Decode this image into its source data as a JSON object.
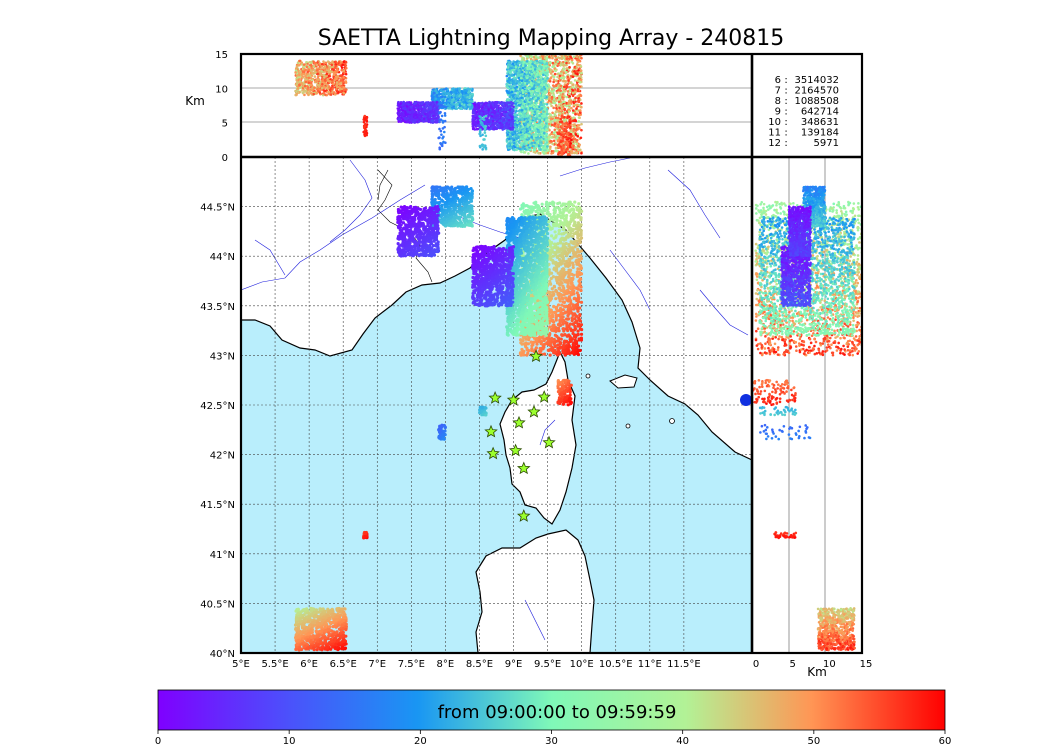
{
  "chart_data": {
    "type": "scatter",
    "title": "SAETTA Lightning Mapping Array - 240815",
    "time_range_label": "from 09:00:00 to 09:59:59",
    "map": {
      "lon_range": [
        5,
        12.5
      ],
      "lat_range": [
        40,
        45
      ],
      "lon_ticks": [
        "5°E",
        "5.5°E",
        "6°E",
        "6.5°E",
        "7°E",
        "7.5°E",
        "8°E",
        "8.5°E",
        "9°E",
        "9.5°E",
        "10°E",
        "10.5°E",
        "11°E",
        "11.5°E"
      ],
      "lat_ticks": [
        "40°N",
        "40.5°N",
        "41°N",
        "41.5°N",
        "42°N",
        "42.5°N",
        "43°N",
        "43.5°N",
        "44°N",
        "44.5°N"
      ],
      "grid": true
    },
    "top_panel": {
      "ylabel": "Km",
      "y_range": [
        0,
        15
      ],
      "y_ticks": [
        "0",
        "5",
        "10",
        "15"
      ]
    },
    "side_panel": {
      "xlabel": "Km",
      "x_range": [
        0,
        15
      ],
      "x_ticks": [
        "0",
        "5",
        "10",
        "15"
      ]
    },
    "counts": [
      {
        "label": "6",
        "value": "3514032",
        "color": "#000000"
      },
      {
        "label": "7",
        "value": "2164570",
        "color": "#ff0000"
      },
      {
        "label": "8",
        "value": "1088508",
        "color": "#000000"
      },
      {
        "label": "9",
        "value": "642714",
        "color": "#000000"
      },
      {
        "label": "10",
        "value": "348631",
        "color": "#000000"
      },
      {
        "label": "11",
        "value": "139184",
        "color": "#000000"
      },
      {
        "label": "12",
        "value": "5971",
        "color": "#000000"
      }
    ],
    "colorbar": {
      "range": [
        0,
        60
      ],
      "ticks": [
        "0",
        "10",
        "20",
        "30",
        "40",
        "50",
        "60"
      ],
      "colormap": "rainbow"
    },
    "stations": [
      {
        "lon": 9.33,
        "lat": 42.99
      },
      {
        "lon": 8.73,
        "lat": 42.57
      },
      {
        "lon": 9.0,
        "lat": 42.55
      },
      {
        "lon": 9.45,
        "lat": 42.58
      },
      {
        "lon": 9.3,
        "lat": 42.43
      },
      {
        "lon": 9.08,
        "lat": 42.32
      },
      {
        "lon": 8.67,
        "lat": 42.23
      },
      {
        "lon": 9.52,
        "lat": 42.12
      },
      {
        "lon": 8.7,
        "lat": 42.01
      },
      {
        "lon": 9.03,
        "lat": 42.04
      },
      {
        "lon": 9.15,
        "lat": 41.86
      },
      {
        "lon": 9.15,
        "lat": 41.38
      }
    ],
    "clusters": [
      {
        "lon": [
          9.1,
          10.0
        ],
        "lat": [
          43.0,
          44.55
        ],
        "alt": [
          0.5,
          15
        ],
        "time": [
          30,
          60
        ]
      },
      {
        "lon": [
          8.9,
          9.5
        ],
        "lat": [
          43.2,
          44.4
        ],
        "alt": [
          1,
          14
        ],
        "time": [
          18,
          35
        ]
      },
      {
        "lon": [
          8.4,
          9.0
        ],
        "lat": [
          43.5,
          44.1
        ],
        "alt": [
          4,
          8
        ],
        "time": [
          0,
          12
        ]
      },
      {
        "lon": [
          7.8,
          8.4
        ],
        "lat": [
          44.3,
          44.7
        ],
        "alt": [
          7,
          10
        ],
        "time": [
          15,
          28
        ]
      },
      {
        "lon": [
          7.3,
          7.9
        ],
        "lat": [
          44.0,
          44.5
        ],
        "alt": [
          5,
          8
        ],
        "time": [
          0,
          10
        ]
      },
      {
        "lon": [
          9.65,
          9.85
        ],
        "lat": [
          42.5,
          42.75
        ],
        "alt": [
          0,
          6
        ],
        "time": [
          50,
          60
        ]
      },
      {
        "lon": [
          7.9,
          8.0
        ],
        "lat": [
          42.15,
          42.3
        ],
        "alt": [
          1,
          8
        ],
        "time": [
          12,
          18
        ]
      },
      {
        "lon": [
          8.5,
          8.6
        ],
        "lat": [
          42.4,
          42.48
        ],
        "alt": [
          1,
          6
        ],
        "time": [
          22,
          26
        ]
      },
      {
        "lon": [
          6.8,
          6.85
        ],
        "lat": [
          41.16,
          41.22
        ],
        "alt": [
          3,
          6
        ],
        "time": [
          55,
          60
        ]
      },
      {
        "lon": [
          5.8,
          6.55
        ],
        "lat": [
          40.03,
          40.45
        ],
        "alt": [
          9,
          14
        ],
        "time": [
          40,
          60
        ]
      }
    ]
  }
}
